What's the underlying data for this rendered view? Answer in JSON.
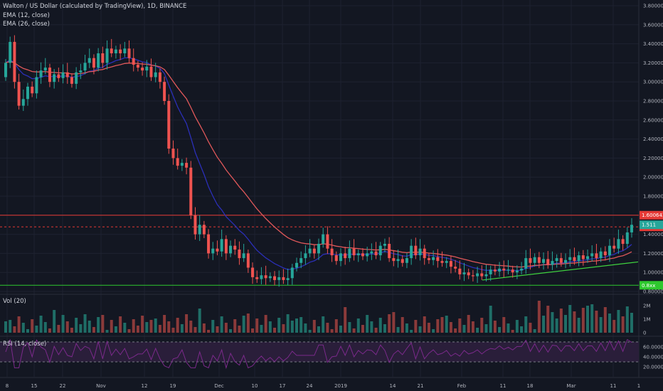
{
  "legend": {
    "title": "Walton / US Dollar (calculated by TradingView), 1D, BINANCE",
    "ema12": "EMA (12, close)",
    "ema26": "EMA (26, close)",
    "vol": "Vol (20)",
    "rsi": "RSI (14, close)"
  },
  "colors": {
    "background": "#131722",
    "up": "#26a69a",
    "down": "#ef5350",
    "ema12": "#2b2fb8",
    "ema26": "#e0585a",
    "resistance": "#e53935",
    "support": "#2ec82e",
    "trendline": "#3fd43f",
    "rsi_line": "#7b2a8b",
    "rsi_band": "#2a1e3a"
  },
  "price_axis_labels": [
    "3.800000",
    "3.600000",
    "3.400000",
    "3.200000",
    "3.000000",
    "2.800000",
    "2.600000",
    "2.400000",
    "2.200000",
    "2.000000",
    "1.800000",
    "1.600000",
    "1.400000",
    "1.200000",
    "1.000000",
    "0.800000"
  ],
  "price_tags": {
    "resistance": "1.600643",
    "last": "1.478025",
    "current": "1.511",
    "support": "0.8xx"
  },
  "volume_axis_labels": [
    "2M",
    "1M",
    "0"
  ],
  "rsi_axis_labels": [
    "60.0000",
    "40.0000",
    "20.0000"
  ],
  "time_axis_labels": [
    "8",
    "15",
    "22",
    "Nov",
    "12",
    "19",
    "Dec",
    "10",
    "17",
    "24",
    "2019",
    "14",
    "21",
    "Feb",
    "11",
    "18",
    "Mar",
    "11",
    "1"
  ],
  "chart_data": {
    "type": "candlestick",
    "title": "Walton / US Dollar (calculated by TradingView), 1D, BINANCE",
    "price_range": [
      0.8,
      3.8
    ],
    "levels": {
      "resistance": 1.600643,
      "dashed_last": 1.478025,
      "support": 0.865
    },
    "trendline": {
      "from": [
        0.92,
        "Feb 6"
      ],
      "to": [
        1.11,
        "Mar 15"
      ]
    },
    "rsi_range": [
      0,
      80
    ],
    "rsi_levels": [
      70,
      30
    ],
    "volume_max_m": 3,
    "candles": [
      [
        3.05,
        3.2
      ],
      [
        3.2,
        3.42
      ],
      [
        3.42,
        3.0
      ],
      [
        3.0,
        2.75
      ],
      [
        2.75,
        2.82
      ],
      [
        2.82,
        2.95
      ],
      [
        2.95,
        2.88
      ],
      [
        2.88,
        3.05
      ],
      [
        3.05,
        3.12
      ],
      [
        3.12,
        3.15
      ],
      [
        3.15,
        3.0
      ],
      [
        3.0,
        3.08
      ],
      [
        3.08,
        3.04
      ],
      [
        3.04,
        3.1
      ],
      [
        3.1,
        3.05
      ],
      [
        3.05,
        2.98
      ],
      [
        2.98,
        3.1
      ],
      [
        3.1,
        3.12
      ],
      [
        3.12,
        3.2
      ],
      [
        3.2,
        3.25
      ],
      [
        3.25,
        3.15
      ],
      [
        3.15,
        3.3
      ],
      [
        3.3,
        3.2
      ],
      [
        3.2,
        3.35
      ],
      [
        3.35,
        3.3
      ],
      [
        3.3,
        3.34
      ],
      [
        3.34,
        3.3
      ],
      [
        3.3,
        3.35
      ],
      [
        3.35,
        3.25
      ],
      [
        3.25,
        3.18
      ],
      [
        3.18,
        3.15
      ],
      [
        3.15,
        3.12
      ],
      [
        3.12,
        3.16
      ],
      [
        3.16,
        3.05
      ],
      [
        3.05,
        3.1
      ],
      [
        3.1,
        3.0
      ],
      [
        3.0,
        2.8
      ],
      [
        2.8,
        2.3
      ],
      [
        2.3,
        2.2
      ],
      [
        2.2,
        2.12
      ],
      [
        2.12,
        2.15
      ],
      [
        2.15,
        2.1
      ],
      [
        2.1,
        1.6
      ],
      [
        1.6,
        1.4
      ],
      [
        1.4,
        1.5
      ],
      [
        1.5,
        1.4
      ],
      [
        1.4,
        1.2
      ],
      [
        1.2,
        1.25
      ],
      [
        1.25,
        1.22
      ],
      [
        1.22,
        1.35
      ],
      [
        1.35,
        1.2
      ],
      [
        1.2,
        1.28
      ],
      [
        1.28,
        1.24
      ],
      [
        1.24,
        1.15
      ],
      [
        1.15,
        1.2
      ],
      [
        1.2,
        1.05
      ],
      [
        1.05,
        0.95
      ],
      [
        0.95,
        0.93
      ],
      [
        0.93,
        0.97
      ],
      [
        0.97,
        0.94
      ],
      [
        0.94,
        0.96
      ],
      [
        0.96,
        0.92
      ],
      [
        0.92,
        0.95
      ],
      [
        0.95,
        0.92
      ],
      [
        0.92,
        0.94
      ],
      [
        0.94,
        1.05
      ],
      [
        1.05,
        1.1
      ],
      [
        1.1,
        1.15
      ],
      [
        1.15,
        1.2
      ],
      [
        1.2,
        1.25
      ],
      [
        1.25,
        1.2
      ],
      [
        1.2,
        1.3
      ],
      [
        1.3,
        1.4
      ],
      [
        1.4,
        1.25
      ],
      [
        1.25,
        1.18
      ],
      [
        1.18,
        1.12
      ],
      [
        1.12,
        1.2
      ],
      [
        1.2,
        1.15
      ],
      [
        1.15,
        1.25
      ],
      [
        1.25,
        1.18
      ],
      [
        1.18,
        1.2
      ],
      [
        1.2,
        1.17
      ],
      [
        1.17,
        1.2
      ],
      [
        1.2,
        1.22
      ],
      [
        1.22,
        1.18
      ],
      [
        1.18,
        1.28
      ],
      [
        1.28,
        1.3
      ],
      [
        1.3,
        1.15
      ],
      [
        1.15,
        1.12
      ],
      [
        1.12,
        1.14
      ],
      [
        1.14,
        1.1
      ],
      [
        1.1,
        1.15
      ],
      [
        1.15,
        1.28
      ],
      [
        1.28,
        1.18
      ],
      [
        1.18,
        1.25
      ],
      [
        1.25,
        1.15
      ],
      [
        1.15,
        1.13
      ],
      [
        1.13,
        1.16
      ],
      [
        1.16,
        1.12
      ],
      [
        1.12,
        1.1
      ],
      [
        1.1,
        1.12
      ],
      [
        1.12,
        1.06
      ],
      [
        1.06,
        1.04
      ],
      [
        1.04,
        0.98
      ],
      [
        0.98,
        1.0
      ],
      [
        1.0,
        0.97
      ],
      [
        0.97,
        0.96
      ],
      [
        0.96,
        0.99
      ],
      [
        0.99,
        0.96
      ],
      [
        0.96,
        0.98
      ],
      [
        0.98,
        1.03
      ],
      [
        1.03,
        1.01
      ],
      [
        1.01,
        1.04
      ],
      [
        1.04,
        1.02
      ],
      [
        1.02,
        1.03
      ],
      [
        1.03,
        1.0
      ],
      [
        1.0,
        1.02
      ],
      [
        1.02,
        1.04
      ],
      [
        1.04,
        1.15
      ],
      [
        1.15,
        1.1
      ],
      [
        1.1,
        1.16
      ],
      [
        1.16,
        1.1
      ],
      [
        1.1,
        1.14
      ],
      [
        1.14,
        1.08
      ],
      [
        1.08,
        1.12
      ],
      [
        1.12,
        1.15
      ],
      [
        1.15,
        1.1
      ],
      [
        1.1,
        1.13
      ],
      [
        1.13,
        1.16
      ],
      [
        1.16,
        1.12
      ],
      [
        1.12,
        1.18
      ],
      [
        1.18,
        1.14
      ],
      [
        1.14,
        1.17
      ],
      [
        1.17,
        1.2
      ],
      [
        1.2,
        1.15
      ],
      [
        1.15,
        1.22
      ],
      [
        1.22,
        1.18
      ],
      [
        1.18,
        1.28
      ],
      [
        1.28,
        1.25
      ],
      [
        1.25,
        1.35
      ],
      [
        1.35,
        1.3
      ],
      [
        1.3,
        1.42
      ],
      [
        1.42,
        1.5
      ]
    ]
  }
}
